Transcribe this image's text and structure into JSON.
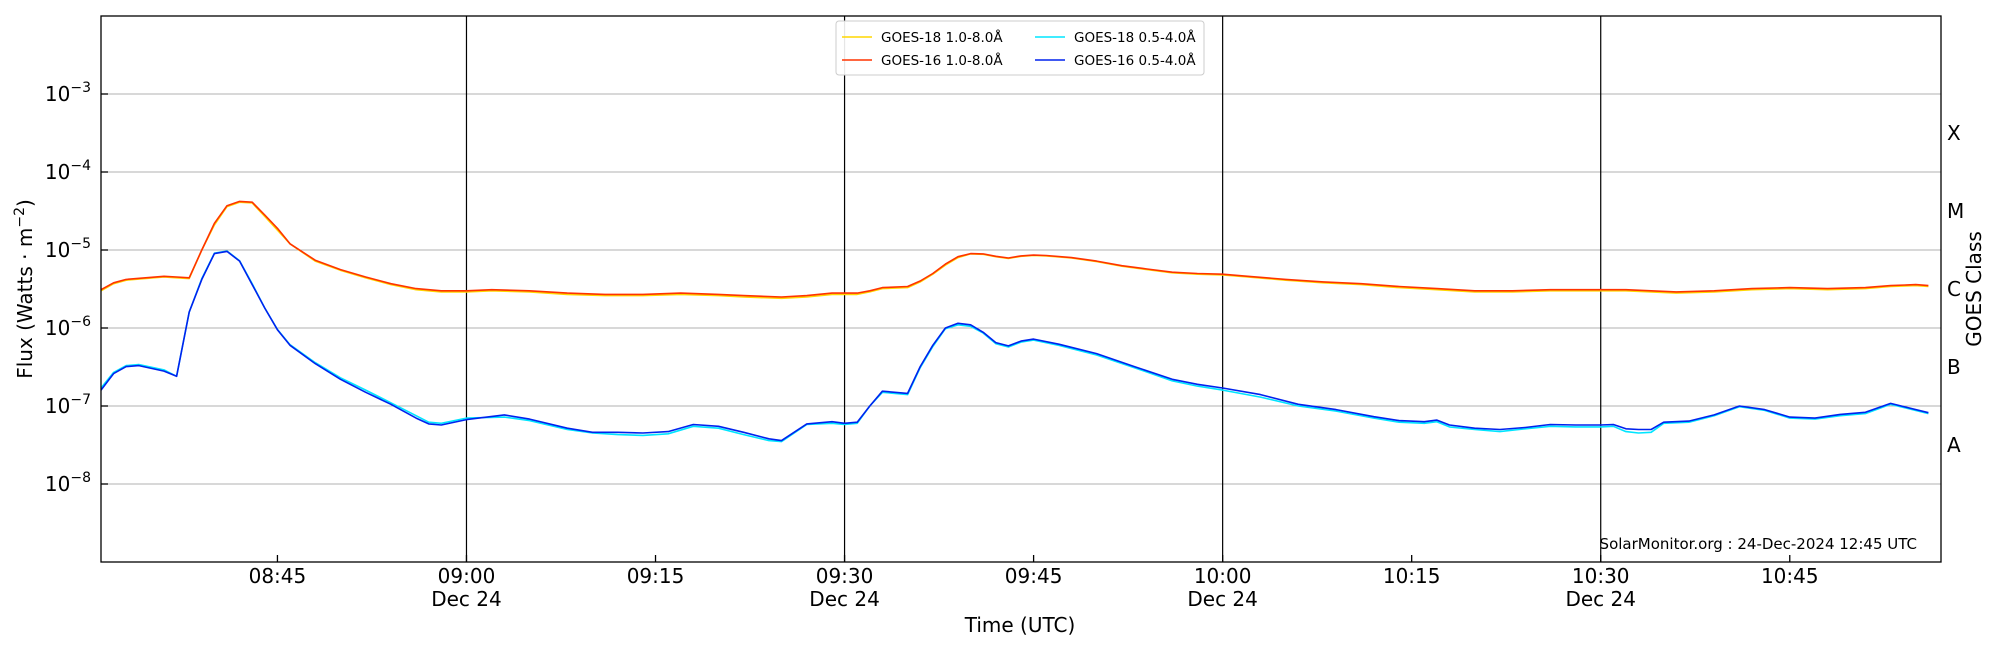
{
  "chart_data": {
    "type": "line",
    "xlabel": "Time (UTC)",
    "ylabel_main": "Flux (Watts · m",
    "ylabel_sup": "−2",
    "ylabel_close": ")",
    "y2label": "GOES Class",
    "credit": "SolarMonitor.org : 24-Dec-2024 12:45 UTC",
    "y_scale": "log",
    "ylim": [
      1e-09,
      0.01
    ],
    "xlim": [
      "08:31",
      "10:57"
    ],
    "grid": "horizontal at decades",
    "y_ticks": [
      {
        "value": 1e-08,
        "base": "10",
        "exp": "−8"
      },
      {
        "value": 1e-07,
        "base": "10",
        "exp": "−7"
      },
      {
        "value": 1e-06,
        "base": "10",
        "exp": "−6"
      },
      {
        "value": 1e-05,
        "base": "10",
        "exp": "−5"
      },
      {
        "value": 0.0001,
        "base": "10",
        "exp": "−4"
      },
      {
        "value": 0.001,
        "base": "10",
        "exp": "−3"
      }
    ],
    "x_ticks": [
      {
        "time": "08:45",
        "label": "08:45",
        "date": ""
      },
      {
        "time": "09:00",
        "label": "09:00",
        "date": "Dec 24"
      },
      {
        "time": "09:15",
        "label": "09:15",
        "date": ""
      },
      {
        "time": "09:30",
        "label": "09:30",
        "date": "Dec 24"
      },
      {
        "time": "09:45",
        "label": "09:45",
        "date": ""
      },
      {
        "time": "10:00",
        "label": "10:00",
        "date": "Dec 24"
      },
      {
        "time": "10:15",
        "label": "10:15",
        "date": ""
      },
      {
        "time": "10:30",
        "label": "10:30",
        "date": "Dec 24"
      },
      {
        "time": "10:45",
        "label": "10:45",
        "date": ""
      }
    ],
    "vertical_lines": [
      "09:00",
      "09:30",
      "10:00",
      "10:30"
    ],
    "goes_classes": [
      {
        "label": "A",
        "value": 3.16e-08
      },
      {
        "label": "B",
        "value": 3.16e-07
      },
      {
        "label": "C",
        "value": 3.16e-06
      },
      {
        "label": "M",
        "value": 3.16e-05
      },
      {
        "label": "X",
        "value": 0.000316
      }
    ],
    "legend": {
      "placement": "top-center",
      "columns": [
        [
          "GOES-18 1.0-8.0Å",
          "GOES-16 1.0-8.0Å"
        ],
        [
          "GOES-18 0.5-4.0Å",
          "GOES-16 0.5-4.0Å"
        ]
      ]
    },
    "series": [
      {
        "name": "GOES-18 1.0-8.0Å",
        "color": "#ffd700",
        "x": [
          "08:31",
          "08:32",
          "08:33",
          "08:36",
          "08:37",
          "08:38",
          "08:39",
          "08:40",
          "08:41",
          "08:42",
          "08:43",
          "08:44",
          "08:45",
          "08:46",
          "08:48",
          "08:50",
          "08:52",
          "08:54",
          "08:56",
          "08:58",
          "09:00",
          "09:02",
          "09:05",
          "09:08",
          "09:11",
          "09:14",
          "09:17",
          "09:20",
          "09:22",
          "09:25",
          "09:27",
          "09:29",
          "09:31",
          "09:32",
          "09:33",
          "09:35",
          "09:36",
          "09:37",
          "09:38",
          "09:39",
          "09:40",
          "09:41",
          "09:42",
          "09:43",
          "09:44",
          "09:45",
          "09:46",
          "09:48",
          "09:50",
          "09:52",
          "09:54",
          "09:56",
          "09:58",
          "10:00",
          "10:02",
          "10:05",
          "10:08",
          "10:11",
          "10:14",
          "10:17",
          "10:20",
          "10:23",
          "10:26",
          "10:29",
          "10:32",
          "10:34",
          "10:36",
          "10:39",
          "10:42",
          "10:45",
          "10:48",
          "10:51",
          "10:53",
          "10:55",
          "10:56"
        ],
        "values": [
          3e-06,
          3.7e-06,
          4.1e-06,
          4.5e-06,
          4.4e-06,
          4.3e-06,
          1e-05,
          2.1e-05,
          3.6e-05,
          4.1e-05,
          4e-05,
          2.7e-05,
          1.8e-05,
          1.2e-05,
          7.2e-06,
          5.5e-06,
          4.4e-06,
          3.6e-06,
          3.1e-06,
          2.9e-06,
          2.9e-06,
          3e-06,
          2.9e-06,
          2.7e-06,
          2.6e-06,
          2.6e-06,
          2.7e-06,
          2.6e-06,
          2.5e-06,
          2.4e-06,
          2.5e-06,
          2.7e-06,
          2.7e-06,
          2.9e-06,
          3.2e-06,
          3.3e-06,
          3.9e-06,
          4.9e-06,
          6.4e-06,
          8e-06,
          8.9e-06,
          8.8e-06,
          8.2e-06,
          7.8e-06,
          8.3e-06,
          8.5e-06,
          8.4e-06,
          7.9e-06,
          7.1e-06,
          6.2e-06,
          5.6e-06,
          5.1e-06,
          4.9e-06,
          4.8e-06,
          4.5e-06,
          4.1e-06,
          3.8e-06,
          3.6e-06,
          3.3e-06,
          3.1e-06,
          2.9e-06,
          2.9e-06,
          3e-06,
          3e-06,
          3e-06,
          2.9e-06,
          2.8e-06,
          2.9e-06,
          3.1e-06,
          3.2e-06,
          3.1e-06,
          3.2e-06,
          3.4e-06,
          3.5e-06,
          3.4e-06
        ]
      },
      {
        "name": "GOES-16 1.0-8.0Å",
        "color": "#ff3300",
        "x": [
          "08:31",
          "08:32",
          "08:33",
          "08:36",
          "08:37",
          "08:38",
          "08:39",
          "08:40",
          "08:41",
          "08:42",
          "08:43",
          "08:44",
          "08:45",
          "08:46",
          "08:48",
          "08:50",
          "08:52",
          "08:54",
          "08:56",
          "08:58",
          "09:00",
          "09:02",
          "09:05",
          "09:08",
          "09:11",
          "09:14",
          "09:17",
          "09:20",
          "09:22",
          "09:25",
          "09:27",
          "09:29",
          "09:31",
          "09:32",
          "09:33",
          "09:35",
          "09:36",
          "09:37",
          "09:38",
          "09:39",
          "09:40",
          "09:41",
          "09:42",
          "09:43",
          "09:44",
          "09:45",
          "09:46",
          "09:48",
          "09:50",
          "09:52",
          "09:54",
          "09:56",
          "09:58",
          "10:00",
          "10:02",
          "10:05",
          "10:08",
          "10:11",
          "10:14",
          "10:17",
          "10:20",
          "10:23",
          "10:26",
          "10:29",
          "10:32",
          "10:34",
          "10:36",
          "10:39",
          "10:42",
          "10:45",
          "10:48",
          "10:51",
          "10:53",
          "10:55",
          "10:56"
        ],
        "values": [
          3.1e-06,
          3.8e-06,
          4.2e-06,
          4.6e-06,
          4.5e-06,
          4.4e-06,
          1e-05,
          2.2e-05,
          3.7e-05,
          4.2e-05,
          4.1e-05,
          2.8e-05,
          1.9e-05,
          1.2e-05,
          7.4e-06,
          5.6e-06,
          4.5e-06,
          3.7e-06,
          3.2e-06,
          3e-06,
          3e-06,
          3.1e-06,
          3e-06,
          2.8e-06,
          2.7e-06,
          2.7e-06,
          2.8e-06,
          2.7e-06,
          2.6e-06,
          2.5e-06,
          2.6e-06,
          2.8e-06,
          2.8e-06,
          3e-06,
          3.3e-06,
          3.4e-06,
          4e-06,
          5e-06,
          6.6e-06,
          8.2e-06,
          9e-06,
          8.9e-06,
          8.3e-06,
          7.9e-06,
          8.4e-06,
          8.6e-06,
          8.5e-06,
          8e-06,
          7.2e-06,
          6.3e-06,
          5.7e-06,
          5.2e-06,
          5e-06,
          4.9e-06,
          4.6e-06,
          4.2e-06,
          3.9e-06,
          3.7e-06,
          3.4e-06,
          3.2e-06,
          3e-06,
          3e-06,
          3.1e-06,
          3.1e-06,
          3.1e-06,
          3e-06,
          2.9e-06,
          3e-06,
          3.2e-06,
          3.3e-06,
          3.2e-06,
          3.3e-06,
          3.5e-06,
          3.6e-06,
          3.5e-06
        ]
      },
      {
        "name": "GOES-18 0.5-4.0Å",
        "color": "#00e5ff",
        "x": [
          "08:31",
          "08:32",
          "08:33",
          "08:34",
          "08:36",
          "08:37",
          "08:38",
          "08:39",
          "08:40",
          "08:41",
          "08:42",
          "08:43",
          "08:44",
          "08:45",
          "08:46",
          "08:48",
          "08:50",
          "08:52",
          "08:54",
          "08:56",
          "08:57",
          "08:58",
          "09:00",
          "09:03",
          "09:05",
          "09:08",
          "09:10",
          "09:12",
          "09:14",
          "09:16",
          "09:18",
          "09:20",
          "09:22",
          "09:24",
          "09:25",
          "09:27",
          "09:29",
          "09:30",
          "09:31",
          "09:32",
          "09:33",
          "09:35",
          "09:36",
          "09:37",
          "09:38",
          "09:39",
          "09:40",
          "09:41",
          "09:42",
          "09:43",
          "09:44",
          "09:45",
          "09:47",
          "09:50",
          "09:53",
          "09:56",
          "09:58",
          "10:00",
          "10:03",
          "10:06",
          "10:09",
          "10:12",
          "10:14",
          "10:16",
          "10:17",
          "10:18",
          "10:20",
          "10:22",
          "10:24",
          "10:26",
          "10:28",
          "10:30",
          "10:31",
          "10:32",
          "10:33",
          "10:34",
          "10:35",
          "10:37",
          "10:39",
          "10:41",
          "10:43",
          "10:45",
          "10:47",
          "10:49",
          "10:51",
          "10:53",
          "10:56"
        ],
        "values": [
          1.7e-07,
          2.7e-07,
          3.3e-07,
          3.4e-07,
          2.9e-07,
          2.4e-07,
          1.6e-06,
          4.3e-06,
          9.1e-06,
          9.7e-06,
          7.3e-06,
          3.7e-06,
          1.8e-06,
          9.6e-07,
          6.1e-07,
          3.6e-07,
          2.3e-07,
          1.6e-07,
          1.1e-07,
          7.5e-08,
          6.2e-08,
          6e-08,
          7e-08,
          7.2e-08,
          6.5e-08,
          5e-08,
          4.5e-08,
          4.3e-08,
          4.2e-08,
          4.4e-08,
          5.5e-08,
          5.2e-08,
          4.3e-08,
          3.6e-08,
          3.5e-08,
          5.8e-08,
          6e-08,
          5.8e-08,
          6e-08,
          1e-07,
          1.5e-07,
          1.4e-07,
          3.1e-07,
          5.8e-07,
          9.8e-07,
          1.1e-06,
          1.05e-06,
          8.6e-07,
          6.3e-07,
          5.7e-07,
          6.6e-07,
          7e-07,
          6e-07,
          4.5e-07,
          3.1e-07,
          2.1e-07,
          1.8e-07,
          1.6e-07,
          1.3e-07,
          1e-07,
          8.6e-08,
          7e-08,
          6.2e-08,
          6e-08,
          6.3e-08,
          5.4e-08,
          5e-08,
          4.7e-08,
          5.1e-08,
          5.5e-08,
          5.4e-08,
          5.4e-08,
          5.5e-08,
          4.7e-08,
          4.5e-08,
          4.6e-08,
          6e-08,
          6.2e-08,
          7.5e-08,
          9.8e-08,
          8.8e-08,
          7e-08,
          6.8e-08,
          7.5e-08,
          8e-08,
          1.05e-07,
          8e-08
        ]
      },
      {
        "name": "GOES-16 0.5-4.0Å",
        "color": "#0022ee",
        "x": [
          "08:31",
          "08:32",
          "08:33",
          "08:34",
          "08:36",
          "08:37",
          "08:38",
          "08:39",
          "08:40",
          "08:41",
          "08:42",
          "08:43",
          "08:44",
          "08:45",
          "08:46",
          "08:48",
          "08:50",
          "08:52",
          "08:54",
          "08:56",
          "08:57",
          "08:58",
          "09:00",
          "09:03",
          "09:05",
          "09:08",
          "09:10",
          "09:12",
          "09:14",
          "09:16",
          "09:18",
          "09:20",
          "09:22",
          "09:24",
          "09:25",
          "09:27",
          "09:29",
          "09:30",
          "09:31",
          "09:32",
          "09:33",
          "09:35",
          "09:36",
          "09:37",
          "09:38",
          "09:39",
          "09:40",
          "09:41",
          "09:42",
          "09:43",
          "09:44",
          "09:45",
          "09:47",
          "09:50",
          "09:53",
          "09:56",
          "09:58",
          "10:00",
          "10:03",
          "10:06",
          "10:09",
          "10:12",
          "10:14",
          "10:16",
          "10:17",
          "10:18",
          "10:20",
          "10:22",
          "10:24",
          "10:26",
          "10:28",
          "10:30",
          "10:31",
          "10:32",
          "10:33",
          "10:34",
          "10:35",
          "10:37",
          "10:39",
          "10:41",
          "10:43",
          "10:45",
          "10:47",
          "10:49",
          "10:51",
          "10:53",
          "10:56"
        ],
        "values": [
          1.6e-07,
          2.6e-07,
          3.2e-07,
          3.3e-07,
          2.8e-07,
          2.4e-07,
          1.6e-06,
          4.2e-06,
          9e-06,
          9.6e-06,
          7.2e-06,
          3.6e-06,
          1.8e-06,
          9.5e-07,
          6e-07,
          3.5e-07,
          2.2e-07,
          1.5e-07,
          1.05e-07,
          7e-08,
          5.9e-08,
          5.7e-08,
          6.7e-08,
          7.7e-08,
          6.8e-08,
          5.2e-08,
          4.6e-08,
          4.6e-08,
          4.5e-08,
          4.7e-08,
          5.8e-08,
          5.5e-08,
          4.6e-08,
          3.8e-08,
          3.6e-08,
          5.9e-08,
          6.3e-08,
          6e-08,
          6.2e-08,
          1e-07,
          1.55e-07,
          1.45e-07,
          3.2e-07,
          6e-07,
          1e-06,
          1.15e-06,
          1.1e-06,
          8.8e-07,
          6.5e-07,
          5.9e-07,
          6.8e-07,
          7.2e-07,
          6.2e-07,
          4.7e-07,
          3.2e-07,
          2.2e-07,
          1.9e-07,
          1.7e-07,
          1.4e-07,
          1.05e-07,
          9e-08,
          7.3e-08,
          6.5e-08,
          6.3e-08,
          6.6e-08,
          5.7e-08,
          5.2e-08,
          5e-08,
          5.3e-08,
          5.8e-08,
          5.7e-08,
          5.7e-08,
          5.8e-08,
          5.1e-08,
          5e-08,
          5e-08,
          6.2e-08,
          6.4e-08,
          7.7e-08,
          1e-07,
          9e-08,
          7.2e-08,
          7e-08,
          7.8e-08,
          8.3e-08,
          1.08e-07,
          8.2e-08
        ]
      }
    ]
  }
}
